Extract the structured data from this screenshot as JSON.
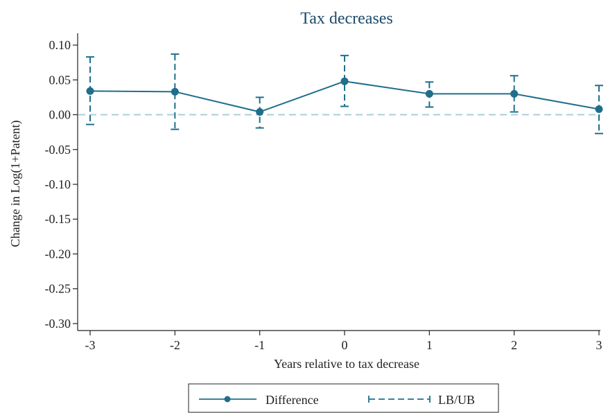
{
  "chart_data": {
    "type": "line",
    "title": "Tax decreases",
    "xlabel": "Years relative to tax decrease",
    "ylabel": "Change in Log(1+Patent)",
    "x": [
      -3,
      -2,
      -1,
      0,
      1,
      2,
      3
    ],
    "x_tick_labels": [
      "-3",
      "-2",
      "-1",
      "0",
      "1",
      "2",
      "3"
    ],
    "y_ticks": [
      0.1,
      0.05,
      0.0,
      -0.05,
      -0.1,
      -0.15,
      -0.2,
      -0.25,
      -0.3
    ],
    "y_tick_labels": [
      "0.10",
      "0.05",
      "0.00",
      "-0.05",
      "-0.10",
      "-0.15",
      "-0.20",
      "-0.25",
      "-0.30"
    ],
    "ylim": [
      -0.31,
      0.115
    ],
    "xlim": [
      -3,
      3
    ],
    "reference_line_y": 0.0,
    "grid": false,
    "series": [
      {
        "name": "Difference",
        "values": [
          0.034,
          0.033,
          0.004,
          0.048,
          0.03,
          0.03,
          0.008
        ],
        "style": "solid",
        "marker": "circle"
      },
      {
        "name": "LB/UB",
        "style": "dashed",
        "lower": [
          -0.014,
          -0.021,
          -0.019,
          0.012,
          0.011,
          0.004,
          -0.027
        ],
        "upper": [
          0.083,
          0.087,
          0.025,
          0.085,
          0.047,
          0.056,
          0.042
        ]
      }
    ],
    "legend": {
      "position": "bottom-center",
      "entries": [
        "Difference",
        "LB/UB"
      ]
    },
    "colors": {
      "series": "#1f6e8c",
      "reference_line": "#a8cfd6",
      "title": "#1a4a6a",
      "axis": "#222222"
    }
  }
}
